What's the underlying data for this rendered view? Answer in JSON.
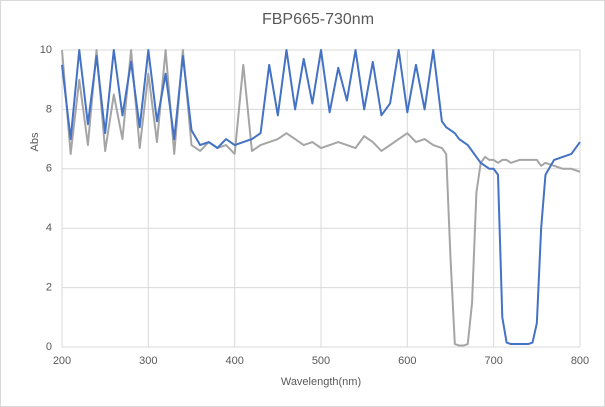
{
  "chart_data": {
    "type": "line",
    "title": "FBP665-730nm",
    "x_label": "Wavelength(nm)",
    "y_label": "Abs",
    "x": [
      200,
      210,
      220,
      230,
      240,
      250,
      260,
      270,
      280,
      290,
      300,
      310,
      320,
      330,
      340,
      350,
      360,
      370,
      380,
      390,
      400,
      410,
      420,
      430,
      440,
      450,
      460,
      470,
      480,
      490,
      500,
      510,
      520,
      530,
      540,
      550,
      560,
      570,
      580,
      590,
      600,
      610,
      620,
      630,
      640,
      645,
      650,
      655,
      660,
      665,
      670,
      675,
      680,
      685,
      690,
      695,
      700,
      705,
      710,
      715,
      720,
      730,
      740,
      745,
      750,
      755,
      760,
      770,
      780,
      790,
      800
    ],
    "series": [
      {
        "color": "#a5a5a5",
        "values": [
          10,
          6.5,
          9.0,
          6.8,
          10,
          6.6,
          8.5,
          7.0,
          10,
          6.7,
          9.2,
          6.9,
          10,
          6.5,
          10,
          6.8,
          6.6,
          6.9,
          6.7,
          6.8,
          6.5,
          9.5,
          6.6,
          6.8,
          6.9,
          7.0,
          7.2,
          7.0,
          6.8,
          6.9,
          6.7,
          6.8,
          6.9,
          6.8,
          6.7,
          7.1,
          6.9,
          6.6,
          6.8,
          7.0,
          7.2,
          6.9,
          7.0,
          6.8,
          6.7,
          6.5,
          3.0,
          0.1,
          0.05,
          0.05,
          0.1,
          1.5,
          5.2,
          6.2,
          6.4,
          6.3,
          6.3,
          6.2,
          6.3,
          6.3,
          6.2,
          6.3,
          6.3,
          6.3,
          6.3,
          6.1,
          6.2,
          6.1,
          6.0,
          6.0,
          5.9
        ]
      },
      {
        "color": "#4472c4",
        "values": [
          9.5,
          7.0,
          10,
          7.5,
          9.8,
          7.2,
          10,
          7.8,
          9.6,
          7.4,
          10,
          7.6,
          9.2,
          7.0,
          9.8,
          7.3,
          6.8,
          6.9,
          6.7,
          7.0,
          6.8,
          6.9,
          7.0,
          7.2,
          9.5,
          7.8,
          10,
          8.0,
          9.7,
          8.2,
          10,
          7.9,
          9.4,
          8.3,
          10,
          8.0,
          9.6,
          7.8,
          8.2,
          10,
          7.9,
          9.5,
          8.0,
          10,
          7.6,
          7.4,
          7.3,
          7.2,
          7.0,
          6.9,
          6.8,
          6.6,
          6.4,
          6.2,
          6.1,
          6.0,
          6.0,
          5.8,
          1.0,
          0.15,
          0.1,
          0.1,
          0.1,
          0.15,
          0.8,
          4.0,
          5.8,
          6.3,
          6.4,
          6.5,
          6.9
        ]
      }
    ],
    "xlim": [
      200,
      800
    ],
    "xticks": [
      200,
      300,
      400,
      500,
      600,
      700,
      800
    ],
    "ylim": [
      0,
      10
    ],
    "yticks": [
      0,
      2,
      4,
      6,
      8,
      10
    ],
    "grid": true
  }
}
